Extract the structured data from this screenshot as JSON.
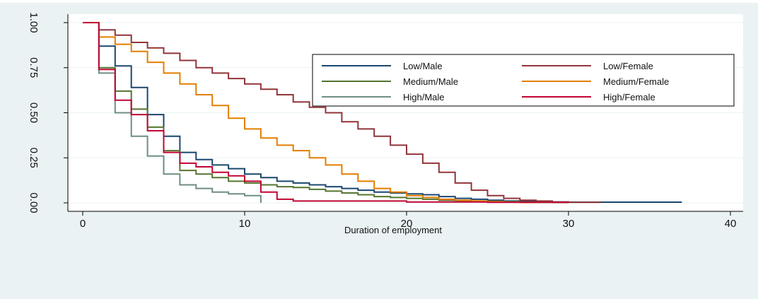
{
  "chart_data": {
    "type": "line",
    "title": "",
    "xlabel": "Duration of employment",
    "ylabel": "",
    "xlim": [
      0,
      40
    ],
    "ylim": [
      0,
      1
    ],
    "x_ticks": [
      0,
      10,
      20,
      30,
      40
    ],
    "y_ticks": [
      0,
      0.25,
      0.5,
      0.75,
      1
    ],
    "y_tick_labels": [
      "0.00",
      "0.25",
      "0.50",
      "0.75",
      "1.00"
    ],
    "grid": true,
    "legend_position": "top-right",
    "series": [
      {
        "name": "Low/Male",
        "color": "#1a476f",
        "x": [
          0,
          1,
          2,
          3,
          4,
          5,
          6,
          7,
          8,
          9,
          10,
          11,
          12,
          13,
          14,
          15,
          16,
          17,
          18,
          19,
          20,
          21,
          22,
          23,
          24,
          25,
          26,
          27,
          28,
          29,
          30,
          37
        ],
        "y": [
          1.0,
          0.87,
          0.76,
          0.64,
          0.49,
          0.37,
          0.28,
          0.24,
          0.21,
          0.19,
          0.16,
          0.14,
          0.12,
          0.11,
          0.1,
          0.09,
          0.08,
          0.07,
          0.06,
          0.055,
          0.05,
          0.045,
          0.035,
          0.025,
          0.02,
          0.015,
          0.01,
          0.008,
          0.006,
          0.005,
          0.004,
          0.004
        ]
      },
      {
        "name": "Low/Female",
        "color": "#90353b",
        "x": [
          0,
          1,
          2,
          3,
          4,
          5,
          6,
          7,
          8,
          9,
          10,
          11,
          12,
          13,
          14,
          15,
          16,
          17,
          18,
          19,
          20,
          21,
          22,
          23,
          24,
          25,
          26,
          27,
          28,
          29,
          30,
          32
        ],
        "y": [
          1.0,
          0.96,
          0.93,
          0.89,
          0.86,
          0.83,
          0.79,
          0.75,
          0.72,
          0.69,
          0.66,
          0.63,
          0.6,
          0.56,
          0.53,
          0.5,
          0.45,
          0.41,
          0.37,
          0.32,
          0.27,
          0.22,
          0.17,
          0.11,
          0.07,
          0.04,
          0.025,
          0.015,
          0.01,
          0.005,
          0.003,
          0.003
        ]
      },
      {
        "name": "Medium/Male",
        "color": "#55752f",
        "x": [
          0,
          1,
          2,
          3,
          4,
          5,
          6,
          7,
          8,
          9,
          10,
          11,
          12,
          13,
          14,
          15,
          16,
          17,
          18,
          19,
          20,
          21,
          22,
          23,
          24,
          25,
          26,
          27,
          28,
          29,
          30
        ],
        "y": [
          1.0,
          0.75,
          0.62,
          0.52,
          0.42,
          0.29,
          0.18,
          0.16,
          0.14,
          0.12,
          0.11,
          0.1,
          0.09,
          0.085,
          0.075,
          0.065,
          0.055,
          0.045,
          0.035,
          0.03,
          0.025,
          0.02,
          0.015,
          0.012,
          0.01,
          0.008,
          0.006,
          0.004,
          0.003,
          0.002,
          0.002
        ]
      },
      {
        "name": "Medium/Female",
        "color": "#e37e00",
        "x": [
          0,
          1,
          2,
          3,
          4,
          5,
          6,
          7,
          8,
          9,
          10,
          11,
          12,
          13,
          14,
          15,
          16,
          17,
          18,
          19,
          20,
          21,
          22,
          23,
          24,
          25,
          26,
          27,
          28
        ],
        "y": [
          1.0,
          0.92,
          0.88,
          0.84,
          0.78,
          0.72,
          0.66,
          0.6,
          0.54,
          0.47,
          0.41,
          0.36,
          0.32,
          0.29,
          0.25,
          0.21,
          0.16,
          0.12,
          0.08,
          0.06,
          0.04,
          0.03,
          0.02,
          0.015,
          0.01,
          0.007,
          0.004,
          0.002,
          0.002
        ]
      },
      {
        "name": "High/Male",
        "color": "#6e8e84",
        "x": [
          0,
          1,
          2,
          3,
          4,
          5,
          6,
          7,
          8,
          9,
          10,
          11
        ],
        "y": [
          1.0,
          0.72,
          0.5,
          0.37,
          0.26,
          0.16,
          0.1,
          0.08,
          0.06,
          0.05,
          0.04,
          0.0
        ]
      },
      {
        "name": "High/Female",
        "color": "#c10534",
        "x": [
          0,
          1,
          2,
          3,
          4,
          5,
          6,
          7,
          8,
          9,
          10,
          11,
          12,
          13,
          14,
          15,
          20,
          25,
          30
        ],
        "y": [
          1.0,
          0.74,
          0.57,
          0.49,
          0.4,
          0.28,
          0.22,
          0.2,
          0.17,
          0.15,
          0.12,
          0.06,
          0.02,
          0.01,
          0.01,
          0.01,
          0.005,
          0.003,
          0.002
        ]
      }
    ]
  }
}
